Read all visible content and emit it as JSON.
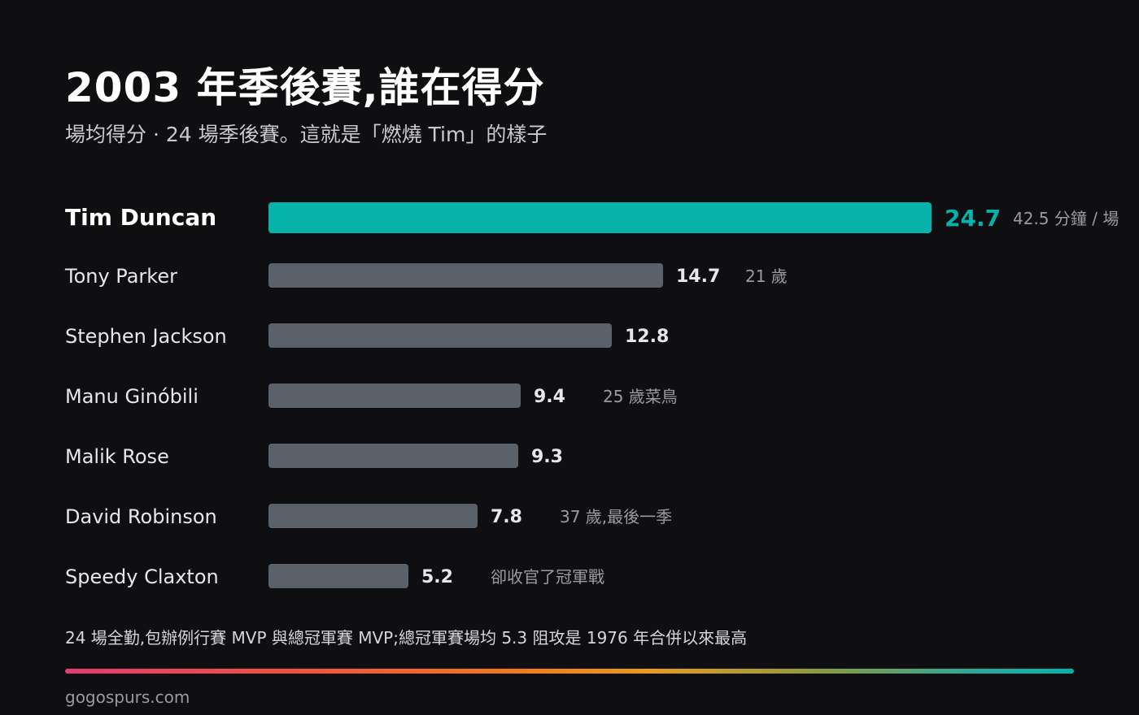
{
  "header": {
    "title": "2003 年季後賽,誰在得分",
    "subtitle": "場均得分 · 24 場季後賽。這就是「燃燒 Tim」的樣子"
  },
  "chart_data": {
    "type": "bar",
    "orientation": "horizontal",
    "categories": [
      "Tim Duncan",
      "Tony Parker",
      "Stephen Jackson",
      "Manu Ginóbili",
      "Malik Rose",
      "David Robinson",
      "Speedy Claxton"
    ],
    "values": [
      24.7,
      14.7,
      12.8,
      9.4,
      9.3,
      7.8,
      5.2
    ],
    "value_labels": [
      "24.7",
      "14.7",
      "12.8",
      "9.4",
      "9.3",
      "7.8",
      "5.2"
    ],
    "annotations": [
      "42.5 分鐘 / 場",
      "21 歲",
      "",
      "25 歲菜鳥",
      "",
      "37 歲,最後一季",
      "卻收官了冠軍戰"
    ],
    "highlight_index": 0,
    "xlim": [
      0,
      24.7
    ],
    "colors": {
      "highlight": "#05b3ab",
      "bar": "#5b616b",
      "label": "#e6e7ea",
      "annotation": "#9a9ba1"
    },
    "grid": false
  },
  "footer": {
    "note": "24 場全勤,包辦例行賽 MVP 與總冠軍賽 MVP;總冠軍賽場均 5.3 阻攻是 1976 年合併以來最高",
    "credit": "gogospurs.com"
  }
}
